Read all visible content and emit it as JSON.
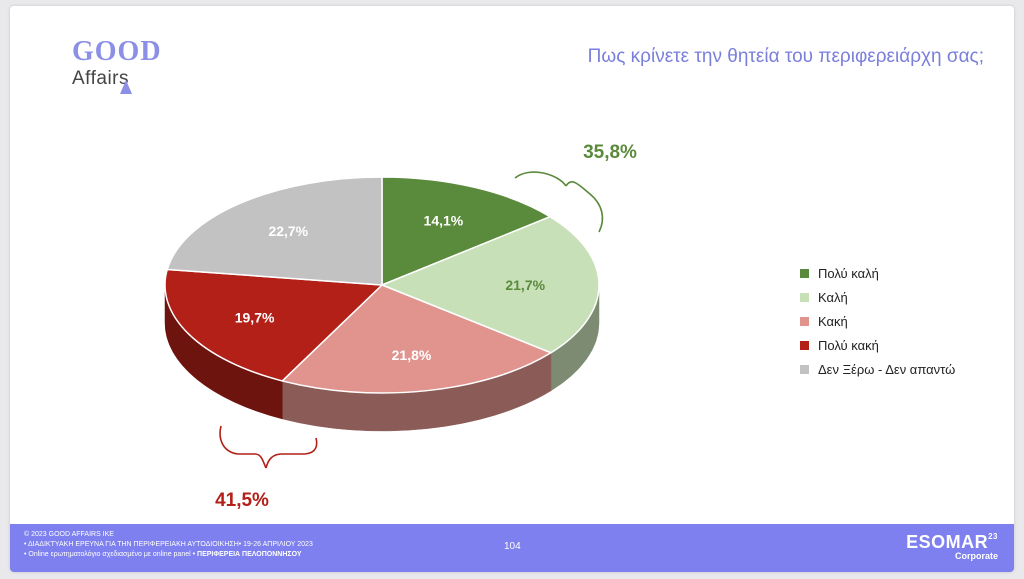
{
  "logo": {
    "line1": "GOOD",
    "line2": "Affairs"
  },
  "title": "Πως κρίνετε την θητεία του περιφερειάρχη σας;",
  "chart_data": {
    "type": "pie",
    "title": "Πως κρίνετε την θητεία του περιφερειάρχη σας;",
    "categories": [
      "Πολύ καλή",
      "Καλή",
      "Κακή",
      "Πολύ κακή",
      "Δεν Ξέρω - Δεν απαντώ"
    ],
    "values": [
      14.1,
      21.7,
      21.8,
      19.7,
      22.7
    ],
    "labels": [
      "14,1%",
      "21,7%",
      "21,8%",
      "19,7%",
      "22,7%"
    ],
    "colors": [
      "#5a8a3c",
      "#c8e0b8",
      "#e0948d",
      "#b22018",
      "#c2c2c2"
    ],
    "label_colors": [
      "#ffffff",
      "#5a8a3c",
      "#ffffff",
      "#ffffff",
      "#ffffff"
    ],
    "legend_position": "right",
    "annotations": [
      {
        "text": "35,8%",
        "color": "#5a8a3c",
        "groups": [
          "Πολύ καλή",
          "Καλή"
        ]
      },
      {
        "text": "41,5%",
        "color": "#b22018",
        "groups": [
          "Κακή",
          "Πολύ κακή"
        ]
      }
    ]
  },
  "footer": {
    "line1": "© 2023 GOOD AFFAIRS IKE",
    "line2": "• ΔΙΑΔΙΚΤΥΑΚΗ ΕΡΕΥΝΑ  ΓΙΑ ΤΗΝ ΠΕΡΙΦΕΡΕΙΑΚΗ ΑΥΤΟΔΙΟΙΚΗΣΗ• 19-26 ΑΠΡΙΛΙΟΥ 2023",
    "line3": "• Online ερωτηματολόγιο σχεδιασμένο με online panel",
    "line3b": "• ΠΕΡΙΦΕΡΕΙΑ ΠΕΛΟΠΟΝΝΗΣΟΥ",
    "page": "104",
    "esomar": "ESOMAR",
    "esomar_sup": "23",
    "esomar_sub": "Corporate"
  }
}
